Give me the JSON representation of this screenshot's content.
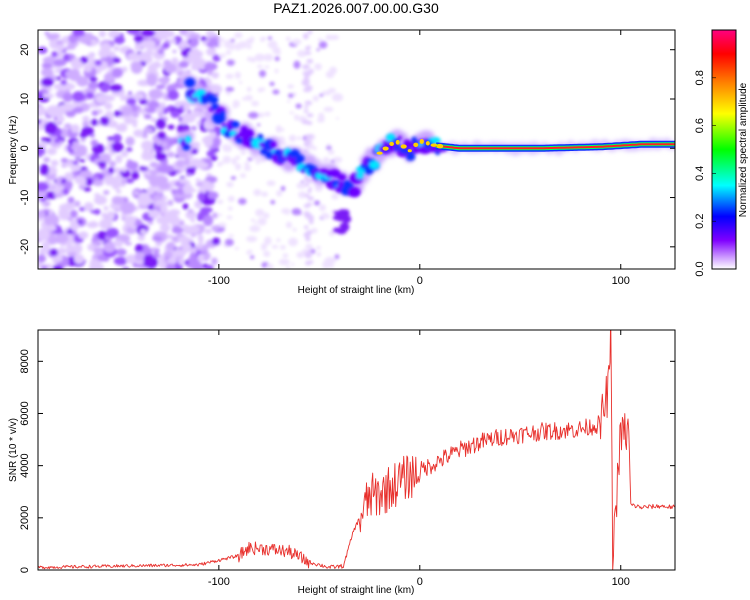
{
  "title": "PAZ1.2026.007.00.00.G30",
  "chart_data": [
    {
      "type": "heatmap",
      "xlabel": "Height of straight line (km)",
      "ylabel": "Frequency (Hz)",
      "xlim": [
        -190,
        127
      ],
      "ylim": [
        -24.5,
        24
      ],
      "xticks": [
        -100,
        0,
        100
      ],
      "yticks": [
        -20,
        -10,
        0,
        10,
        20
      ],
      "colorbar": {
        "label": "Normalized spectral amplitude",
        "range": [
          0,
          1
        ],
        "ticks": [
          0.0,
          0.2,
          0.4,
          0.6,
          0.8
        ],
        "colors": [
          "#ffffff",
          "#cc99ff",
          "#7f00ff",
          "#0000ff",
          "#00ffff",
          "#00ff00",
          "#ffff00",
          "#ff8000",
          "#ff0000",
          "#ff0080"
        ]
      },
      "ridge_frequency_hz": [
        {
          "x": -115,
          "y": 12
        },
        {
          "x": -105,
          "y": 9.5
        },
        {
          "x": -100,
          "y": 7
        },
        {
          "x": -95,
          "y": 4
        },
        {
          "x": -85,
          "y": 2
        },
        {
          "x": -75,
          "y": 0
        },
        {
          "x": -65,
          "y": -2
        },
        {
          "x": -55,
          "y": -4
        },
        {
          "x": -45,
          "y": -6
        },
        {
          "x": -38,
          "y": -7.5
        },
        {
          "x": -33,
          "y": -8
        },
        {
          "x": -28,
          "y": -4
        },
        {
          "x": -20,
          "y": -1
        },
        {
          "x": -12,
          "y": 1.5
        },
        {
          "x": -5,
          "y": -0.5
        },
        {
          "x": 0,
          "y": 1.5
        },
        {
          "x": 8,
          "y": 0.5
        },
        {
          "x": 20,
          "y": 0
        },
        {
          "x": 60,
          "y": 0
        },
        {
          "x": 90,
          "y": 0.3
        },
        {
          "x": 110,
          "y": 0.8
        },
        {
          "x": 127,
          "y": 0.8
        }
      ]
    },
    {
      "type": "line",
      "xlabel": "Height of straight line (km)",
      "ylabel": "SNR (10 * v/v)",
      "xlim": [
        -190,
        127
      ],
      "ylim": [
        0,
        9200
      ],
      "xticks": [
        -100,
        0,
        100
      ],
      "yticks": [
        0,
        2000,
        4000,
        6000,
        8000
      ],
      "color": "#e8302c",
      "series": [
        {
          "x": [
            -190,
            -150,
            -110,
            -90,
            -85,
            -75,
            -65,
            -55,
            -45,
            -38,
            -33,
            -28,
            -25,
            -20,
            -10,
            0,
            10,
            20,
            30,
            40,
            50,
            60,
            70,
            80,
            85,
            90,
            94,
            95,
            96,
            100,
            104,
            105,
            110,
            120,
            127
          ],
          "y": [
            100,
            150,
            200,
            550,
            850,
            800,
            700,
            300,
            100,
            150,
            1500,
            2300,
            2800,
            2900,
            3400,
            3800,
            4200,
            4600,
            4900,
            5100,
            5200,
            5300,
            5350,
            5400,
            5500,
            5600,
            7000,
            9200,
            600,
            5200,
            5300,
            2500,
            2400,
            2450,
            2400
          ]
        }
      ]
    }
  ]
}
